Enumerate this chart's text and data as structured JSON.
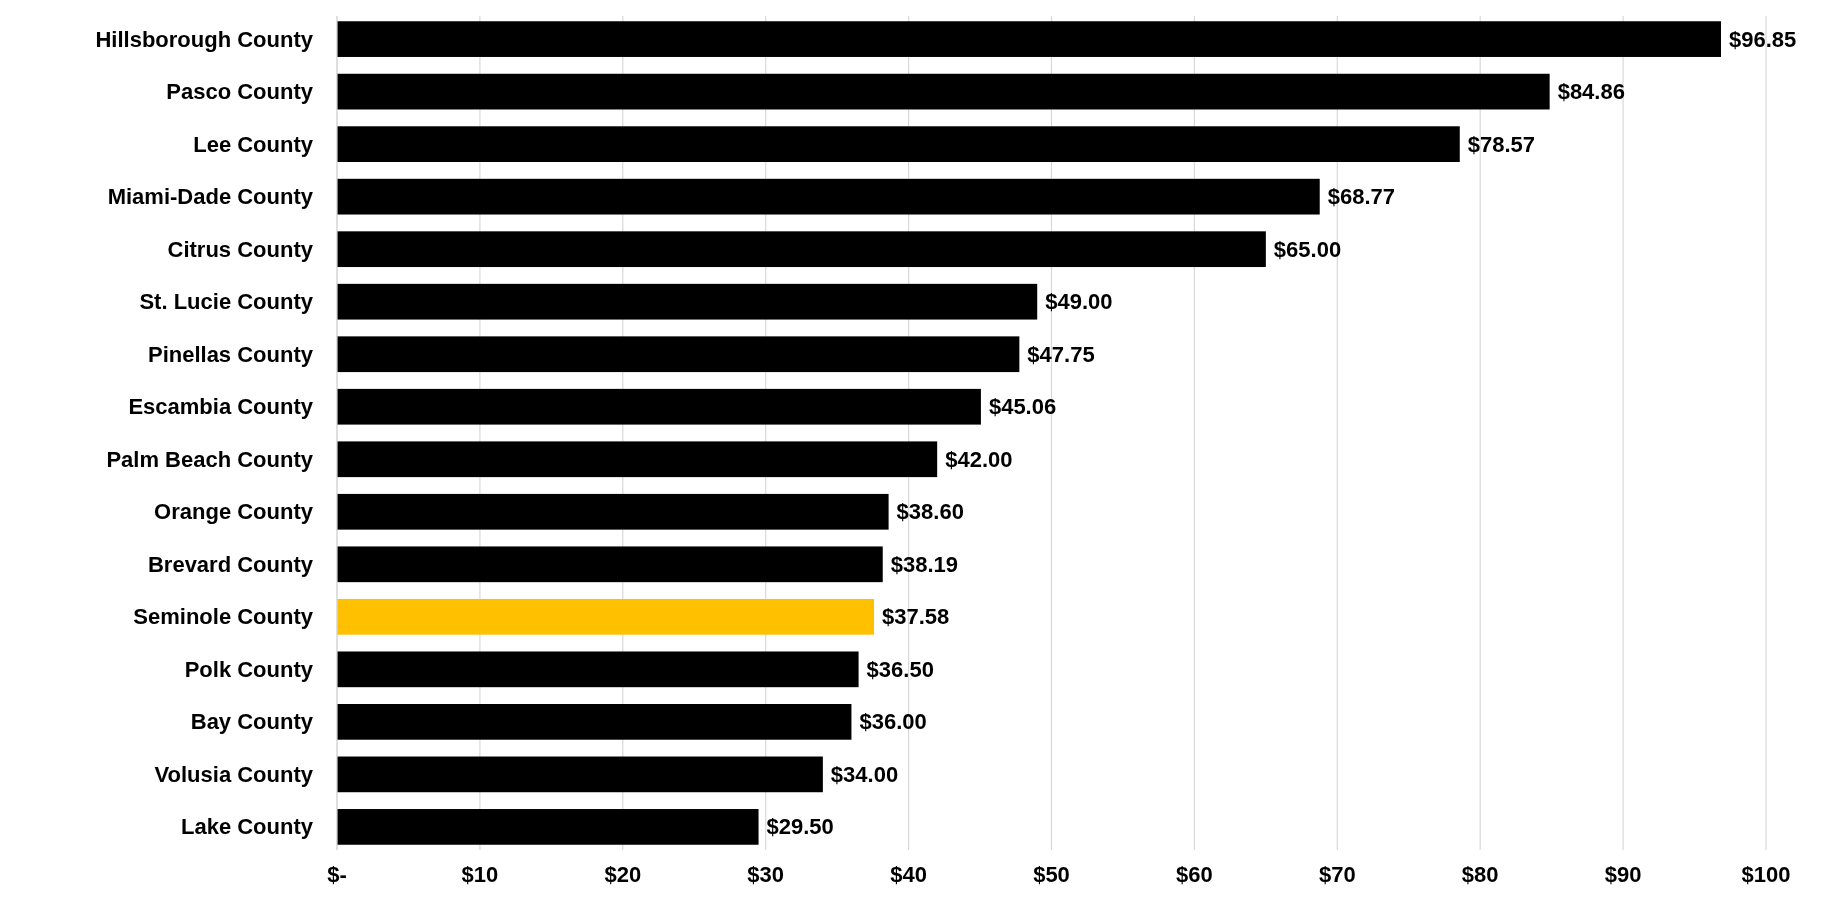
{
  "chart_data": {
    "type": "bar",
    "orientation": "horizontal",
    "categories": [
      "Hillsborough County",
      "Pasco County",
      "Lee County",
      "Miami-Dade County",
      "Citrus County",
      "St. Lucie County",
      "Pinellas County",
      "Escambia County",
      "Palm Beach County",
      "Orange County",
      "Brevard County",
      "Seminole County",
      "Polk County",
      "Bay County",
      "Volusia County",
      "Lake County"
    ],
    "values": [
      96.85,
      84.86,
      78.57,
      68.77,
      65.0,
      49.0,
      47.75,
      45.06,
      42.0,
      38.6,
      38.19,
      37.58,
      36.5,
      36.0,
      34.0,
      29.5
    ],
    "value_labels": [
      "$96.85",
      "$84.86",
      "$78.57",
      "$68.77",
      "$65.00",
      "$49.00",
      "$47.75",
      "$45.06",
      "$42.00",
      "$38.60",
      "$38.19",
      "$37.58",
      "$36.50",
      "$36.00",
      "$34.00",
      "$29.50"
    ],
    "colors": [
      "#000000",
      "#000000",
      "#000000",
      "#000000",
      "#000000",
      "#000000",
      "#000000",
      "#000000",
      "#000000",
      "#000000",
      "#000000",
      "#ffc000",
      "#000000",
      "#000000",
      "#000000",
      "#000000"
    ],
    "xlim": [
      0,
      100
    ],
    "xticks": [
      {
        "value": 0,
        "label": "$-"
      },
      {
        "value": 10,
        "label": "$10"
      },
      {
        "value": 20,
        "label": "$20"
      },
      {
        "value": 30,
        "label": "$30"
      },
      {
        "value": 40,
        "label": "$40"
      },
      {
        "value": 50,
        "label": "$50"
      },
      {
        "value": 60,
        "label": "$60"
      },
      {
        "value": 70,
        "label": "$70"
      },
      {
        "value": 80,
        "label": "$80"
      },
      {
        "value": 90,
        "label": "$90"
      },
      {
        "value": 100,
        "label": "$100"
      }
    ],
    "grid": "x"
  }
}
